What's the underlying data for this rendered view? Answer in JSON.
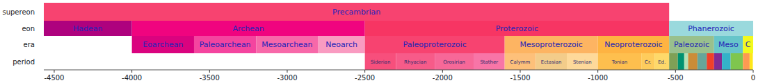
{
  "chart_data": {
    "type": "timeline",
    "xlim": [
      -4567,
      0
    ],
    "xticks": [
      -4500,
      -4000,
      -3500,
      -3000,
      -2500,
      -2000,
      -1500,
      -1000,
      -500,
      0
    ],
    "rows": [
      {
        "name": "supereon",
        "spans": [
          {
            "label": "Precambrian",
            "start": -4567,
            "end": -541,
            "color": "#f74370"
          }
        ]
      },
      {
        "name": "eon",
        "spans": [
          {
            "label": "Hadean",
            "start": -4567,
            "end": -4000,
            "color": "#ae027e"
          },
          {
            "label": "Archean",
            "start": -4000,
            "end": -2500,
            "color": "#f0047f"
          },
          {
            "label": "Proterozoic",
            "start": -2500,
            "end": -541,
            "color": "#f73563"
          },
          {
            "label": "Phanerozoic",
            "start": -541,
            "end": 0,
            "color": "#9ad9dd"
          }
        ]
      },
      {
        "name": "era",
        "spans": [
          {
            "label": "Eoarchean",
            "start": -4000,
            "end": -3600,
            "color": "#da037f"
          },
          {
            "label": "Paleoarchean",
            "start": -3600,
            "end": -3200,
            "color": "#f4449f"
          },
          {
            "label": "Mesoarchean",
            "start": -3200,
            "end": -2800,
            "color": "#f768a9"
          },
          {
            "label": "Neoarch",
            "start": -2800,
            "end": -2500,
            "color": "#f99bc1"
          },
          {
            "label": "Paleoproterozoic",
            "start": -2500,
            "end": -1600,
            "color": "#f74370"
          },
          {
            "label": "Mesoproterozoic",
            "start": -1600,
            "end": -1000,
            "color": "#fdb462"
          },
          {
            "label": "Neoproterozoic",
            "start": -1000,
            "end": -541,
            "color": "#feb342"
          },
          {
            "label": "Paleozoic",
            "start": -541,
            "end": -252,
            "color": "#99c08d"
          },
          {
            "label": "Meso",
            "start": -252,
            "end": -66,
            "color": "#67c5ca"
          },
          {
            "label": "C",
            "start": -66,
            "end": 0,
            "color": "#f2f91d"
          }
        ]
      },
      {
        "name": "period",
        "spans": [
          {
            "label": "Siderian",
            "start": -2500,
            "end": -2300,
            "color": "#f74f7c"
          },
          {
            "label": "Rhyacian",
            "start": -2300,
            "end": -2050,
            "color": "#f75b89"
          },
          {
            "label": "Orosirian",
            "start": -2050,
            "end": -1800,
            "color": "#f76898"
          },
          {
            "label": "Stather",
            "start": -1800,
            "end": -1600,
            "color": "#f875a7"
          },
          {
            "label": "Calymm",
            "start": -1600,
            "end": -1400,
            "color": "#fdc07a"
          },
          {
            "label": "Ectasian",
            "start": -1400,
            "end": -1200,
            "color": "#f3cc8a"
          },
          {
            "label": "Stenian",
            "start": -1200,
            "end": -1000,
            "color": "#fed99a"
          },
          {
            "label": "Tonian",
            "start": -1000,
            "end": -720,
            "color": "#febf4e"
          },
          {
            "label": "Cr.",
            "start": -720,
            "end": -635,
            "color": "#fecc5c"
          },
          {
            "label": "Ed.",
            "start": -635,
            "end": -541,
            "color": "#fed96a"
          },
          {
            "label": null,
            "start": -541,
            "end": -485,
            "color": "#7fa056"
          },
          {
            "label": null,
            "start": -485,
            "end": -444,
            "color": "#009270"
          },
          {
            "label": null,
            "start": -444,
            "end": -419,
            "color": "#b3e1b6"
          },
          {
            "label": null,
            "start": -419,
            "end": -359,
            "color": "#cb8c37"
          },
          {
            "label": null,
            "start": -359,
            "end": -299,
            "color": "#67a599"
          },
          {
            "label": null,
            "start": -299,
            "end": -252,
            "color": "#f04028"
          },
          {
            "label": null,
            "start": -252,
            "end": -201,
            "color": "#812b92"
          },
          {
            "label": null,
            "start": -201,
            "end": -145,
            "color": "#34b2c9"
          },
          {
            "label": null,
            "start": -145,
            "end": -66,
            "color": "#7fc64e"
          },
          {
            "label": null,
            "start": -66,
            "end": -23,
            "color": "#fd9a52"
          },
          {
            "label": null,
            "start": -23,
            "end": -2.6,
            "color": "#ffe619"
          },
          {
            "label": null,
            "start": -2.6,
            "end": 0,
            "color": "#f9f97f"
          }
        ]
      }
    ]
  }
}
